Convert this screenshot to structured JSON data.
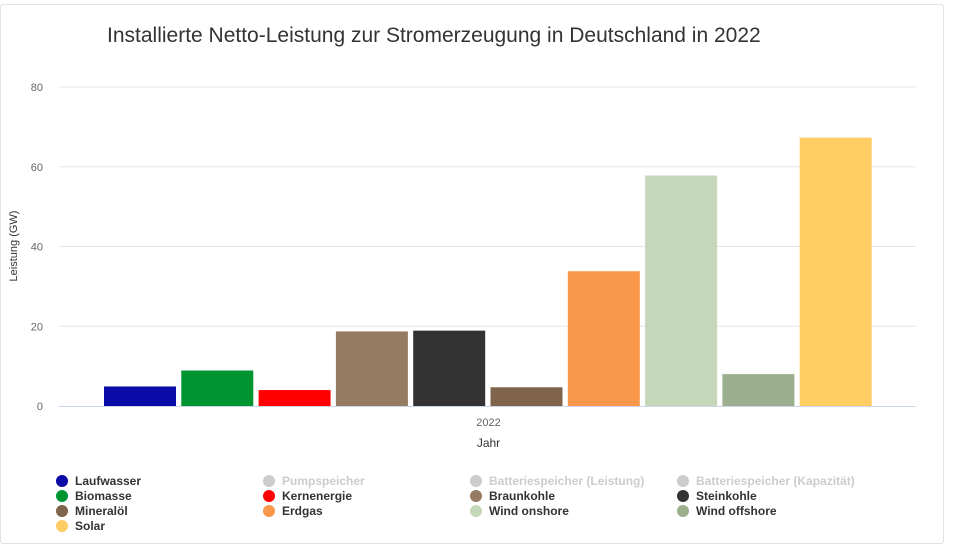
{
  "chart_data": {
    "type": "bar",
    "title": "Installierte Netto-Leistung zur Stromerzeugung in Deutschland in 2022",
    "xlabel": "Jahr",
    "ylabel": "Leistung (GW)",
    "categories": [
      "2022"
    ],
    "ylim": [
      0,
      80
    ],
    "yticks": [
      0,
      20,
      40,
      60,
      80
    ],
    "grid": true,
    "legend_position": "bottom",
    "series": [
      {
        "name": "Laufwasser",
        "values": [
          4.9
        ],
        "color": "#0a0aa6",
        "visible": true
      },
      {
        "name": "Pumpspeicher",
        "values": [
          null
        ],
        "color": "#cccccc",
        "visible": false
      },
      {
        "name": "Batteriespeicher (Leistung)",
        "values": [
          null
        ],
        "color": "#cccccc",
        "visible": false
      },
      {
        "name": "Batteriespeicher (Kapazität)",
        "values": [
          null
        ],
        "color": "#cccccc",
        "visible": false
      },
      {
        "name": "Biomasse",
        "values": [
          8.9
        ],
        "color": "#009530",
        "visible": true
      },
      {
        "name": "Kernenergie",
        "values": [
          4.0
        ],
        "color": "#ff0000",
        "visible": true
      },
      {
        "name": "Braunkohle",
        "values": [
          18.7
        ],
        "color": "#957b62",
        "visible": true
      },
      {
        "name": "Steinkohle",
        "values": [
          18.9
        ],
        "color": "#333333",
        "visible": true
      },
      {
        "name": "Mineralöl",
        "values": [
          4.7
        ],
        "color": "#7f634b",
        "visible": true
      },
      {
        "name": "Erdgas",
        "values": [
          33.8
        ],
        "color": "#f9984b",
        "visible": true
      },
      {
        "name": "Wind onshore",
        "values": [
          57.8
        ],
        "color": "#c4d8b9",
        "visible": true
      },
      {
        "name": "Wind offshore",
        "values": [
          8.0
        ],
        "color": "#9bae8d",
        "visible": true
      },
      {
        "name": "Solar",
        "values": [
          67.3
        ],
        "color": "#ffcd64",
        "visible": true
      }
    ],
    "bar_order": [
      "Laufwasser",
      "Biomasse",
      "Kernenergie",
      "Braunkohle",
      "Steinkohle",
      "Mineralöl",
      "Erdgas",
      "Wind onshore",
      "Wind offshore",
      "Solar"
    ]
  }
}
